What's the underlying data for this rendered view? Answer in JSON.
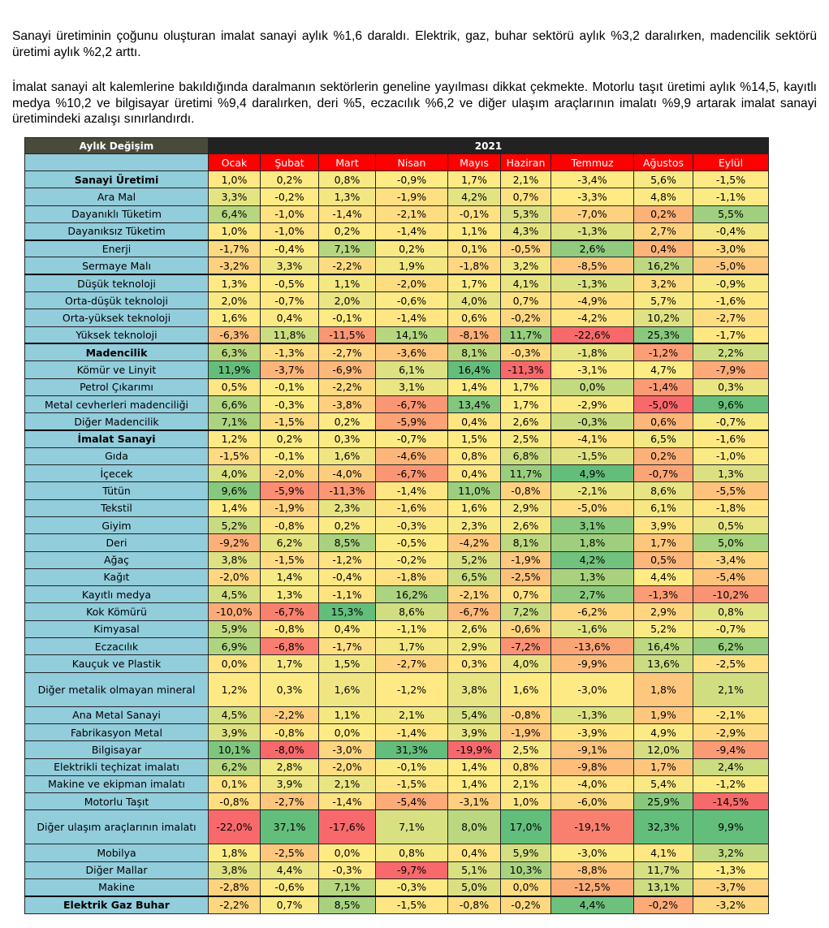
{
  "paragraphs": [
    "Sanayi üretiminin çoğunu oluşturan imalat sanayi aylık %1,6 daraldı. Elektrik, gaz, buhar sektörü aylık %3,2 daralırken, madencilik sektörü üretimi aylık %2,2 arttı.",
    "İmalat sanayi alt kalemlerine bakıldığında daralmanın sektörlerin geneline yayılması dikkat çekmekte. Motorlu taşıt üretimi aylık %14,5, kayıtlı medya %10,2 ve bilgisayar üretimi %9,4 daralırken, deri %5, eczacılık %6,2 ve diğer ulaşım araçlarının imalatı %9,9 artarak imalat sanayi üretimindeki azalışı sınırlandırdı."
  ],
  "table": {
    "header_label": "Aylık Değişim",
    "year": "2021",
    "months": [
      "Ocak",
      "Şubat",
      "Mart",
      "Nisan",
      "Mayıs",
      "Haziran",
      "Temmuz",
      "Ağustos",
      "Eylül"
    ],
    "rows": [
      {
        "label": "Sanayi Üretimi",
        "bold": true,
        "values": [
          "1,0%",
          "0,2%",
          "0,8%",
          "-0,9%",
          "1,7%",
          "2,1%",
          "-3,4%",
          "5,6%",
          "-1,5%"
        ]
      },
      {
        "label": "Ara Mal",
        "values": [
          "3,3%",
          "-0,2%",
          "1,3%",
          "-1,9%",
          "4,2%",
          "0,7%",
          "-3,3%",
          "4,8%",
          "-1,1%"
        ]
      },
      {
        "label": "Dayanıklı Tüketim",
        "values": [
          "6,4%",
          "-1,0%",
          "-1,4%",
          "-2,1%",
          "-0,1%",
          "5,3%",
          "-7,0%",
          "0,2%",
          "5,5%"
        ]
      },
      {
        "label": "Dayanıksız Tüketim",
        "values": [
          "1,0%",
          "-1,0%",
          "0,2%",
          "-1,4%",
          "1,1%",
          "4,3%",
          "-1,3%",
          "2,7%",
          "-0,4%"
        ]
      },
      {
        "label": "Enerji",
        "sep": true,
        "values": [
          "-1,7%",
          "-0,4%",
          "7,1%",
          "0,2%",
          "0,1%",
          "-0,5%",
          "2,6%",
          "0,4%",
          "-3,0%"
        ]
      },
      {
        "label": "Sermaye Malı",
        "values": [
          "-3,2%",
          "3,3%",
          "-2,2%",
          "1,9%",
          "-1,8%",
          "3,2%",
          "-8,5%",
          "16,2%",
          "-5,0%"
        ]
      },
      {
        "label": "Düşük teknoloji",
        "sep": true,
        "values": [
          "1,3%",
          "-0,5%",
          "1,1%",
          "-2,0%",
          "1,7%",
          "4,1%",
          "-1,3%",
          "3,2%",
          "-0,9%"
        ]
      },
      {
        "label": "Orta-düşük teknoloji",
        "values": [
          "2,0%",
          "-0,7%",
          "2,0%",
          "-0,6%",
          "4,0%",
          "0,7%",
          "-4,9%",
          "5,7%",
          "-1,6%"
        ]
      },
      {
        "label": "Orta-yüksek teknoloji",
        "values": [
          "1,6%",
          "0,4%",
          "-0,1%",
          "-1,4%",
          "0,6%",
          "-0,2%",
          "-4,2%",
          "10,2%",
          "-2,7%"
        ]
      },
      {
        "label": "Yüksek teknoloji",
        "values": [
          "-6,3%",
          "11,8%",
          "-11,5%",
          "14,1%",
          "-8,1%",
          "11,7%",
          "-22,6%",
          "25,3%",
          "-1,7%"
        ]
      },
      {
        "label": "Madencilik",
        "bold": true,
        "sep": true,
        "values": [
          "6,3%",
          "-1,3%",
          "-2,7%",
          "-3,6%",
          "8,1%",
          "-0,3%",
          "-1,8%",
          "-1,2%",
          "2,2%"
        ]
      },
      {
        "label": "Kömür ve Linyit",
        "values": [
          "11,9%",
          "-3,7%",
          "-6,9%",
          "6,1%",
          "16,4%",
          "-11,3%",
          "-3,1%",
          "4,7%",
          "-7,9%"
        ]
      },
      {
        "label": "Petrol Çıkarımı",
        "values": [
          "0,5%",
          "-0,1%",
          "-2,2%",
          "3,1%",
          "1,4%",
          "1,7%",
          "0,0%",
          "-1,4%",
          "0,3%"
        ]
      },
      {
        "label": "Metal cevherleri madenciliği",
        "values": [
          "6,6%",
          "-0,3%",
          "-3,8%",
          "-6,7%",
          "13,4%",
          "1,7%",
          "-2,9%",
          "-5,0%",
          "9,6%"
        ]
      },
      {
        "label": "Diğer Madencilik",
        "values": [
          "7,1%",
          "-1,5%",
          "0,2%",
          "-5,9%",
          "0,4%",
          "2,6%",
          "-0,3%",
          "0,6%",
          "-0,7%"
        ]
      },
      {
        "label": "İmalat Sanayi",
        "bold": true,
        "sep": true,
        "values": [
          "1,2%",
          "0,2%",
          "0,3%",
          "-0,7%",
          "1,5%",
          "2,5%",
          "-4,1%",
          "6,5%",
          "-1,6%"
        ]
      },
      {
        "label": "Gıda",
        "values": [
          "-1,5%",
          "-0,1%",
          "1,6%",
          "-4,6%",
          "0,8%",
          "6,8%",
          "-1,5%",
          "0,2%",
          "-1,0%"
        ]
      },
      {
        "label": "İçecek",
        "values": [
          "4,0%",
          "-2,0%",
          "-4,0%",
          "-6,7%",
          "0,4%",
          "11,7%",
          "4,9%",
          "-0,7%",
          "1,3%"
        ]
      },
      {
        "label": "Tütün",
        "values": [
          "9,6%",
          "-5,9%",
          "-11,3%",
          "-1,4%",
          "11,0%",
          "-0,8%",
          "-2,1%",
          "8,6%",
          "-5,5%"
        ]
      },
      {
        "label": "Tekstil",
        "values": [
          "1,4%",
          "-1,9%",
          "2,3%",
          "-1,6%",
          "1,6%",
          "2,9%",
          "-5,0%",
          "6,1%",
          "-1,8%"
        ]
      },
      {
        "label": "Giyim",
        "values": [
          "5,2%",
          "-0,8%",
          "0,2%",
          "-0,3%",
          "2,3%",
          "2,6%",
          "3,1%",
          "3,9%",
          "0,5%"
        ]
      },
      {
        "label": "Deri",
        "values": [
          "-9,2%",
          "6,2%",
          "8,5%",
          "-0,5%",
          "-4,2%",
          "8,1%",
          "1,8%",
          "1,7%",
          "5,0%"
        ]
      },
      {
        "label": "Ağaç",
        "values": [
          "3,8%",
          "-1,5%",
          "-1,2%",
          "-0,2%",
          "5,2%",
          "-1,9%",
          "4,2%",
          "0,5%",
          "-3,4%"
        ]
      },
      {
        "label": "Kağıt",
        "values": [
          "-2,0%",
          "1,4%",
          "-0,4%",
          "-1,8%",
          "6,5%",
          "-2,5%",
          "1,3%",
          "4,4%",
          "-5,4%"
        ]
      },
      {
        "label": "Kayıtlı medya",
        "values": [
          "4,5%",
          "1,3%",
          "-1,1%",
          "16,2%",
          "-2,1%",
          "0,7%",
          "2,7%",
          "-1,3%",
          "-10,2%"
        ]
      },
      {
        "label": "Kok Kömürü",
        "values": [
          "-10,0%",
          "-6,7%",
          "15,3%",
          "8,6%",
          "-6,7%",
          "7,2%",
          "-6,2%",
          "2,9%",
          "0,8%"
        ]
      },
      {
        "label": "Kimyasal",
        "values": [
          "5,9%",
          "-0,8%",
          "0,4%",
          "-1,1%",
          "2,6%",
          "-0,6%",
          "-1,6%",
          "5,2%",
          "-0,7%"
        ]
      },
      {
        "label": "Eczacılık",
        "values": [
          "6,9%",
          "-6,8%",
          "-1,7%",
          "1,7%",
          "2,9%",
          "-7,2%",
          "-13,6%",
          "16,4%",
          "6,2%"
        ]
      },
      {
        "label": "Kauçuk ve Plastik",
        "values": [
          "0,0%",
          "1,7%",
          "1,5%",
          "-2,7%",
          "0,3%",
          "4,0%",
          "-9,9%",
          "13,6%",
          "-2,5%"
        ]
      },
      {
        "label": "Diğer metalik olmayan mineral",
        "tall": true,
        "values": [
          "1,2%",
          "0,3%",
          "1,6%",
          "-1,2%",
          "3,8%",
          "1,6%",
          "-3,0%",
          "1,8%",
          "2,1%"
        ]
      },
      {
        "label": "Ana Metal Sanayi",
        "values": [
          "4,5%",
          "-2,2%",
          "1,1%",
          "2,1%",
          "5,4%",
          "-0,8%",
          "-1,3%",
          "1,9%",
          "-2,1%"
        ]
      },
      {
        "label": "Fabrikasyon Metal",
        "values": [
          "3,9%",
          "-0,8%",
          "0,0%",
          "-1,4%",
          "3,9%",
          "-1,9%",
          "-3,9%",
          "4,9%",
          "-2,9%"
        ]
      },
      {
        "label": "Bilgisayar",
        "values": [
          "10,1%",
          "-8,0%",
          "-3,0%",
          "31,3%",
          "-19,9%",
          "2,5%",
          "-9,1%",
          "12,0%",
          "-9,4%"
        ]
      },
      {
        "label": "Elektrikli teçhizat imalatı",
        "values": [
          "6,2%",
          "2,8%",
          "-2,0%",
          "-0,1%",
          "1,4%",
          "0,8%",
          "-9,8%",
          "1,7%",
          "2,4%"
        ]
      },
      {
        "label": "Makine ve ekipman imalatı",
        "values": [
          "0,1%",
          "3,9%",
          "2,1%",
          "-1,5%",
          "1,4%",
          "2,1%",
          "-4,0%",
          "5,4%",
          "-1,2%"
        ]
      },
      {
        "label": "Motorlu Taşıt",
        "values": [
          "-0,8%",
          "-2,7%",
          "-1,4%",
          "-5,4%",
          "-3,1%",
          "1,0%",
          "-6,0%",
          "25,9%",
          "-14,5%"
        ]
      },
      {
        "label": "Diğer ulaşım araçlarının imalatı",
        "tall": true,
        "values": [
          "-22,0%",
          "37,1%",
          "-17,6%",
          "7,1%",
          "8,0%",
          "17,0%",
          "-19,1%",
          "32,3%",
          "9,9%"
        ]
      },
      {
        "label": "Mobilya",
        "values": [
          "1,8%",
          "-2,5%",
          "0,0%",
          "0,8%",
          "0,4%",
          "5,9%",
          "-3,0%",
          "4,1%",
          "3,2%"
        ]
      },
      {
        "label": "Diğer Mallar",
        "values": [
          "3,8%",
          "4,4%",
          "-0,3%",
          "-9,7%",
          "5,1%",
          "10,3%",
          "-8,8%",
          "11,7%",
          "-1,3%"
        ]
      },
      {
        "label": "Makine",
        "values": [
          "-2,8%",
          "-0,6%",
          "7,1%",
          "-0,3%",
          "5,0%",
          "0,0%",
          "-12,5%",
          "13,1%",
          "-3,7%"
        ]
      },
      {
        "label": "Elektrik Gaz Buhar",
        "bold": true,
        "sep": true,
        "values": [
          "-2,2%",
          "0,7%",
          "8,5%",
          "-1,5%",
          "-0,8%",
          "-0,2%",
          "4,4%",
          "-0,2%",
          "-3,2%"
        ]
      }
    ]
  },
  "colors": {
    "label_bg": "#92cddc",
    "header_dark": "#222222",
    "month_header": "#ff0000",
    "scale_low": "#f8696b",
    "scale_mid": "#ffeb84",
    "scale_high": "#63be7b"
  }
}
